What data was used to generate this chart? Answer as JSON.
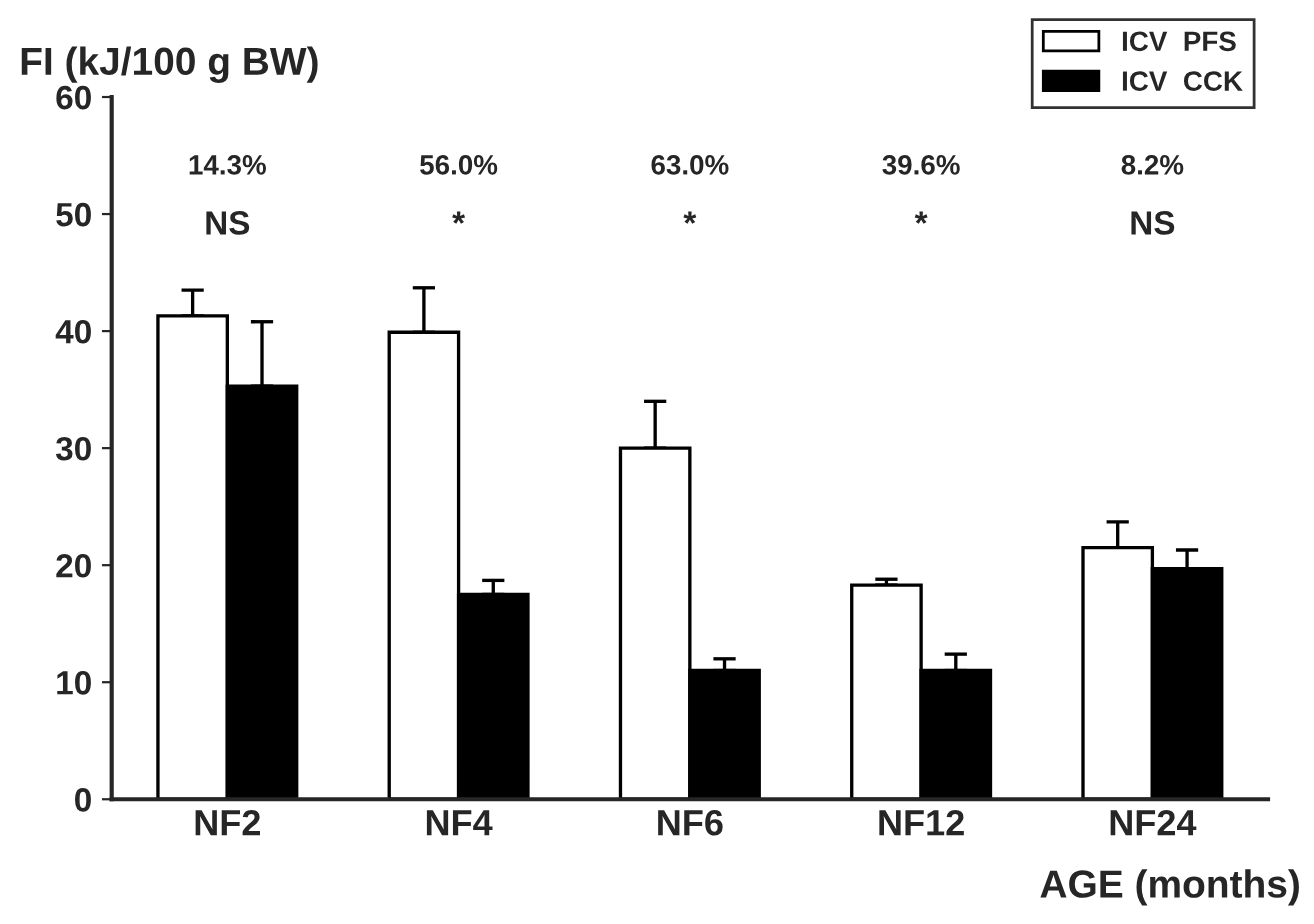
{
  "chart_data": {
    "type": "bar",
    "ylabel": "FI (kJ/100 g BW)",
    "xlabel": "AGE (months)",
    "categories": [
      "NF2",
      "NF4",
      "NF6",
      "NF12",
      "NF24"
    ],
    "series": [
      {
        "name": "ICV  PFS",
        "color": "#ffffff",
        "values": [
          41.3,
          39.9,
          30.0,
          18.3,
          21.5
        ],
        "errors": [
          [
            41.3,
            43.5
          ],
          [
            39.9,
            43.7
          ],
          [
            30.0,
            34.0
          ],
          [
            18.3,
            18.8
          ],
          [
            21.5,
            23.7
          ]
        ]
      },
      {
        "name": "ICV  CCK",
        "color": "#000000",
        "values": [
          35.3,
          17.5,
          11.0,
          11.0,
          19.7
        ],
        "errors": [
          [
            35.3,
            40.8
          ],
          [
            17.5,
            18.7
          ],
          [
            11.0,
            12.0
          ],
          [
            11.0,
            12.4
          ],
          [
            19.7,
            21.3
          ]
        ]
      }
    ],
    "ylim": [
      0,
      60
    ],
    "yticks": [
      0,
      10,
      20,
      30,
      40,
      50,
      60
    ],
    "grid": false,
    "legend": "top right",
    "annotations": [
      "14.3%",
      "NS",
      "56.0%",
      "*",
      "63.0%",
      "*",
      "39.6%",
      "*",
      "8.2%",
      "NS"
    ]
  }
}
